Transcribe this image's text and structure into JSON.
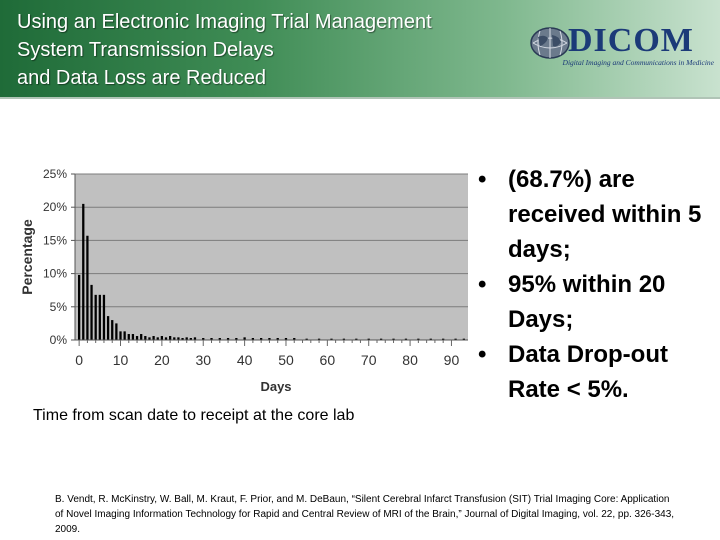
{
  "slide": {
    "title_lines": [
      "Using an Electronic Imaging Trial Management",
      "System Transmission Delays",
      "and Data Loss are Reduced"
    ],
    "logo": {
      "name": "DICOM",
      "tagline": "Digital Imaging and Communications in Medicine"
    },
    "caption": "Time from scan date to receipt at the core lab",
    "bullets": [
      "(68.7%) are received within 5 days;",
      "95% within 20 Days;",
      "Data Drop-out Rate < 5%."
    ],
    "citation": "B. Vendt, R. McKinstry, W. Ball, M. Kraut, F. Prior, and M. DeBaun, “Silent Cerebral Infarct Transfusion (SIT) Trial Imaging Core: Application of Novel Imaging Information Technology for Rapid and Central Review of MRI of the Brain,” Journal of Digital Imaging, vol. 22, pp. 326-343, 2009."
  },
  "chart_data": {
    "type": "bar",
    "xlabel": "Days",
    "ylabel": "Percentage",
    "xlim": [
      -1,
      94
    ],
    "ylim": [
      0,
      0.25
    ],
    "xticks": [
      0,
      10,
      20,
      30,
      40,
      50,
      60,
      70,
      80,
      90
    ],
    "xtick_labels": [
      "0",
      "10",
      "20",
      "30",
      "40",
      "50",
      "60",
      "70",
      "80",
      "90"
    ],
    "yticks": [
      0,
      0.05,
      0.1,
      0.15,
      0.2,
      0.25
    ],
    "ytick_labels": [
      "0%",
      "5%",
      "10%",
      "15%",
      "20%",
      "25%"
    ],
    "grid": "horizontal",
    "plot_background": "#c0c0c0",
    "bar_color": "#000000",
    "x": [
      0,
      1,
      2,
      3,
      4,
      5,
      6,
      7,
      8,
      9,
      10,
      11,
      12,
      13,
      14,
      15,
      16,
      17,
      18,
      19,
      20,
      21,
      22,
      23,
      24,
      25,
      26,
      27,
      28,
      30,
      32,
      34,
      36,
      38,
      40,
      42,
      44,
      46,
      48,
      50,
      52,
      55,
      58,
      61,
      64,
      67,
      70,
      73,
      76,
      79,
      82,
      85,
      88,
      91,
      93
    ],
    "values": [
      0.098,
      0.205,
      0.157,
      0.083,
      0.068,
      0.068,
      0.068,
      0.036,
      0.03,
      0.025,
      0.013,
      0.013,
      0.009,
      0.009,
      0.006,
      0.009,
      0.006,
      0.004,
      0.006,
      0.004,
      0.006,
      0.004,
      0.006,
      0.004,
      0.004,
      0.003,
      0.004,
      0.003,
      0.004,
      0.003,
      0.003,
      0.003,
      0.003,
      0.003,
      0.004,
      0.003,
      0.003,
      0.003,
      0.003,
      0.003,
      0.003,
      0.002,
      0.002,
      0.002,
      0.002,
      0.002,
      0.002,
      0.002,
      0.002,
      0.002,
      0.002,
      0.002,
      0.002,
      0.002,
      0.002
    ]
  }
}
